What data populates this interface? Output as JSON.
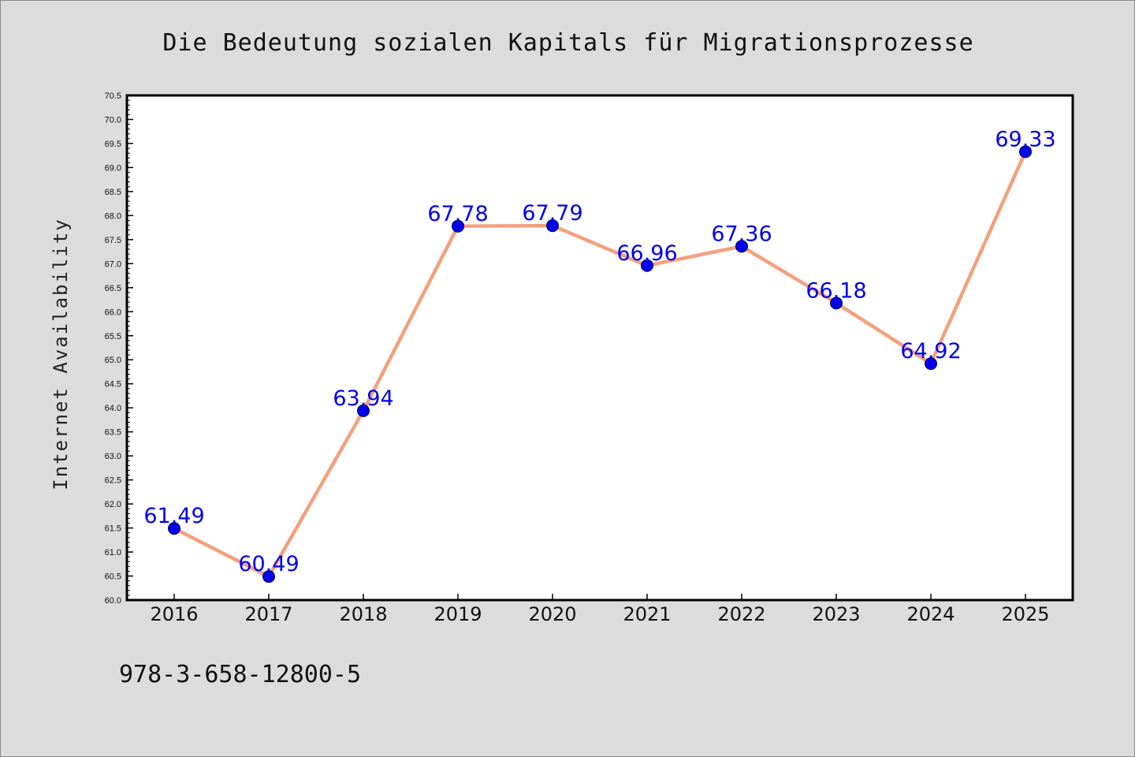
{
  "chart_data": {
    "type": "line",
    "title": "Die Bedeutung sozialen Kapitals für Migrationsprozesse",
    "xlabel": "",
    "ylabel": "Internet Availability",
    "categories": [
      "2016",
      "2017",
      "2018",
      "2019",
      "2020",
      "2021",
      "2022",
      "2023",
      "2024",
      "2025"
    ],
    "series": [
      {
        "values": [
          61.49,
          60.49,
          63.94,
          67.78,
          67.79,
          66.96,
          67.36,
          66.18,
          64.92,
          69.33
        ],
        "labels": [
          "61.49",
          "60.49",
          "63.94",
          "67.78",
          "67.79",
          "66.96",
          "67.36",
          "66.18",
          "64.92",
          "69.33"
        ],
        "line_color": "#f4a07e",
        "marker_color": "#0000ee"
      }
    ],
    "ylim": [
      60.0,
      70.5
    ],
    "yticks": [
      "60.0",
      "60.5",
      "61.0",
      "61.5",
      "62.0",
      "62.5",
      "63.0",
      "63.5",
      "64.0",
      "64.5",
      "65.0",
      "65.5",
      "66.0",
      "66.5",
      "67.0",
      "67.5",
      "68.0",
      "68.5",
      "69.0",
      "69.5",
      "70.0",
      "70.5"
    ],
    "grid": false,
    "legend": "none",
    "annotation": "978-3-658-12800-5",
    "colors": {
      "background": "#dcdcdc",
      "plot_background": "#ffffff",
      "label_color": "#0000ee"
    }
  }
}
